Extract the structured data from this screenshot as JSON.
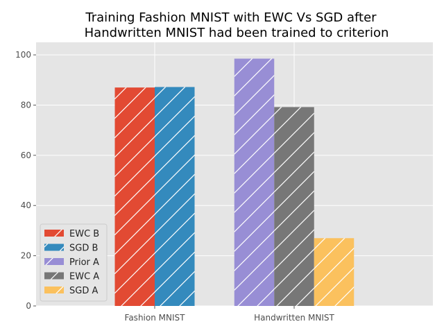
{
  "chart_data": {
    "type": "bar",
    "title_lines": [
      "Training Fashion MNIST with EWC Vs SGD after",
      "Handwritten MNIST had been trained to criterion"
    ],
    "xlabel": "",
    "ylabel": "",
    "ylim": [
      0,
      105
    ],
    "y_ticks": [
      0,
      20,
      40,
      60,
      80,
      100
    ],
    "grid": true,
    "legend_position": "lower-left",
    "groups": [
      {
        "label": "Fashion MNIST",
        "bars": [
          {
            "series": "EWC B",
            "value": 87
          },
          {
            "series": "SGD B",
            "value": 87.2
          }
        ]
      },
      {
        "label": "Handwritten MNIST",
        "bars": [
          {
            "series": "Prior A",
            "value": 98.5
          },
          {
            "series": "EWC A",
            "value": 79.2
          },
          {
            "series": "SGD A",
            "value": 27
          }
        ]
      }
    ],
    "series": [
      {
        "name": "EWC B",
        "color": "#E24A33"
      },
      {
        "name": "SGD B",
        "color": "#348ABD"
      },
      {
        "name": "Prior A",
        "color": "#988ED5"
      },
      {
        "name": "EWC A",
        "color": "#777777"
      },
      {
        "name": "SGD A",
        "color": "#FBC15E"
      }
    ]
  }
}
